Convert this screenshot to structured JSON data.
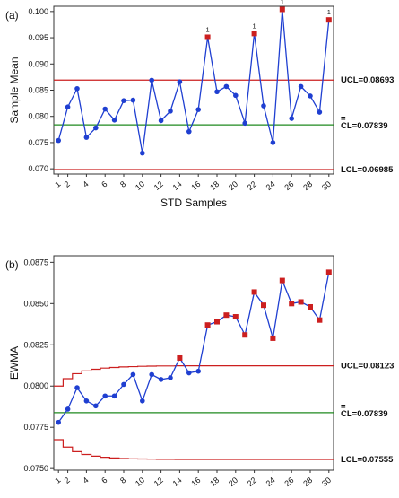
{
  "colors": {
    "series": "#1f3fd1",
    "point": "#1f3fd1",
    "flagged": "#cc1f1f",
    "limit": "#cc1f1f",
    "center": "#1f8a1f",
    "frame": "#333333"
  },
  "chart_data": [
    {
      "type": "line",
      "panel_label": "(a)",
      "title": "",
      "xlabel": "STD  Samples",
      "ylabel": "Sample Mean",
      "x": [
        1,
        2,
        3,
        4,
        5,
        6,
        7,
        8,
        9,
        10,
        11,
        12,
        13,
        14,
        15,
        16,
        17,
        18,
        19,
        20,
        21,
        22,
        23,
        24,
        25,
        26,
        27,
        28,
        29,
        30
      ],
      "x_tick_labels": [
        "1",
        "2",
        "4",
        "6",
        "8",
        "10",
        "12",
        "14",
        "16",
        "18",
        "20",
        "22",
        "24",
        "26",
        "28",
        "30"
      ],
      "ylim": [
        0.069,
        0.101
      ],
      "y_ticks": [
        0.07,
        0.075,
        0.08,
        0.085,
        0.09,
        0.095,
        0.1
      ],
      "y_tick_labels": [
        "0.070",
        "0.075",
        "0.080",
        "0.085",
        "0.090",
        "0.095",
        "0.100"
      ],
      "series": [
        {
          "values": [
            0.0754,
            0.0818,
            0.0853,
            0.076,
            0.0778,
            0.0814,
            0.0793,
            0.083,
            0.0831,
            0.073,
            0.0869,
            0.0792,
            0.081,
            0.0866,
            0.0771,
            0.0813,
            0.0951,
            0.0847,
            0.0857,
            0.084,
            0.0787,
            0.0958,
            0.082,
            0.075,
            0.1004,
            0.0796,
            0.0857,
            0.0839,
            0.0808,
            0.0984
          ]
        }
      ],
      "flagged_points": [
        17,
        22,
        25,
        30
      ],
      "flag_text": "1",
      "limits": {
        "ucl": {
          "value": 0.08693,
          "label": "UCL=0.08693"
        },
        "cl": {
          "value": 0.07839,
          "label": "CL=0.07839",
          "prefix": "="
        },
        "lcl": {
          "value": 0.06985,
          "label": "LCL=0.06985"
        }
      },
      "grid": false
    },
    {
      "type": "line",
      "panel_label": "(b)",
      "title": "",
      "xlabel": "STD  Samples",
      "ylabel": "EWMA",
      "x": [
        1,
        2,
        3,
        4,
        5,
        6,
        7,
        8,
        9,
        10,
        11,
        12,
        13,
        14,
        15,
        16,
        17,
        18,
        19,
        20,
        21,
        22,
        23,
        24,
        25,
        26,
        27,
        28,
        29,
        30
      ],
      "x_tick_labels": [
        "1",
        "2",
        "4",
        "6",
        "8",
        "10",
        "12",
        "14",
        "16",
        "18",
        "20",
        "22",
        "24",
        "26",
        "28",
        "30"
      ],
      "ylim": [
        0.0749,
        0.0879
      ],
      "y_ticks": [
        0.075,
        0.0775,
        0.08,
        0.0825,
        0.085,
        0.0875
      ],
      "y_tick_labels": [
        "0.0750",
        "0.0775",
        "0.0800",
        "0.0825",
        "0.0850",
        "0.0875"
      ],
      "series": [
        {
          "values": [
            0.0778,
            0.0786,
            0.0799,
            0.0791,
            0.0788,
            0.0794,
            0.0794,
            0.0801,
            0.0807,
            0.0791,
            0.0807,
            0.0804,
            0.0805,
            0.0817,
            0.0808,
            0.0809,
            0.0837,
            0.0839,
            0.0843,
            0.0842,
            0.0831,
            0.0857,
            0.0849,
            0.0829,
            0.0864,
            0.085,
            0.0851,
            0.0848,
            0.084,
            0.0869
          ]
        }
      ],
      "flagged_points": [
        14,
        17,
        18,
        19,
        20,
        21,
        22,
        23,
        24,
        25,
        26,
        27,
        28,
        29,
        30
      ],
      "limit_steps_upper": [
        0.08,
        0.08045,
        0.08075,
        0.08092,
        0.08102,
        0.08109,
        0.08113,
        0.08116,
        0.08118,
        0.0812,
        0.08121,
        0.08122,
        0.08122,
        0.08123,
        0.08123,
        0.08123,
        0.08123,
        0.08123,
        0.08123,
        0.08123,
        0.08123,
        0.08123,
        0.08123,
        0.08123,
        0.08123,
        0.08123,
        0.08123,
        0.08123,
        0.08123,
        0.08123
      ],
      "limit_steps_lower": [
        0.07675,
        0.0763,
        0.07602,
        0.07585,
        0.07575,
        0.07568,
        0.07564,
        0.07561,
        0.07559,
        0.07558,
        0.07557,
        0.07556,
        0.07556,
        0.07555,
        0.07555,
        0.07555,
        0.07555,
        0.07555,
        0.07555,
        0.07555,
        0.07555,
        0.07555,
        0.07555,
        0.07555,
        0.07555,
        0.07555,
        0.07555,
        0.07555,
        0.07555,
        0.07555
      ],
      "limits": {
        "ucl": {
          "value": 0.08123,
          "label": "UCL=0.08123"
        },
        "cl": {
          "value": 0.07839,
          "label": "CL=0.07839",
          "prefix": "="
        },
        "lcl": {
          "value": 0.07555,
          "label": "LCL=0.07555"
        }
      },
      "grid": false
    }
  ]
}
